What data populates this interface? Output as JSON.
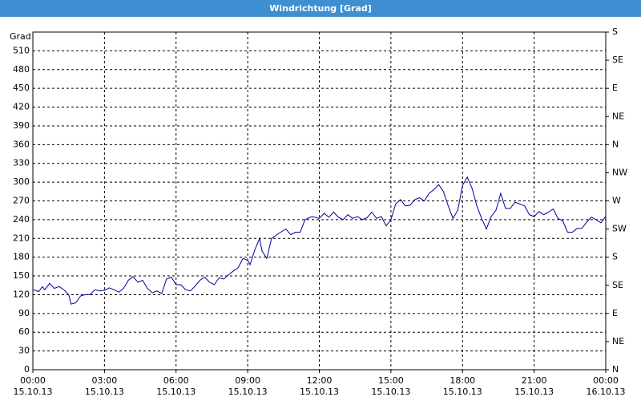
{
  "chart_data": {
    "type": "line",
    "title": "Windrichtung [Grad]",
    "y_label": "Grad",
    "xlim": [
      0,
      24
    ],
    "ylim": [
      0,
      540
    ],
    "y2lim": [
      0,
      540
    ],
    "grid": true,
    "xticks": [
      {
        "value": 0,
        "label": [
          "00:00",
          "15.10.13"
        ]
      },
      {
        "value": 3,
        "label": [
          "03:00",
          "15.10.13"
        ]
      },
      {
        "value": 6,
        "label": [
          "06:00",
          "15.10.13"
        ]
      },
      {
        "value": 9,
        "label": [
          "09:00",
          "15.10.13"
        ]
      },
      {
        "value": 12,
        "label": [
          "12:00",
          "15.10.13"
        ]
      },
      {
        "value": 15,
        "label": [
          "15:00",
          "15.10.13"
        ]
      },
      {
        "value": 18,
        "label": [
          "18:00",
          "15.10.13"
        ]
      },
      {
        "value": 21,
        "label": [
          "21:00",
          "15.10.13"
        ]
      },
      {
        "value": 24,
        "label": [
          "00:00",
          "16.10.13"
        ]
      }
    ],
    "yticks": [
      0,
      30,
      60,
      90,
      120,
      150,
      180,
      210,
      240,
      270,
      300,
      330,
      360,
      390,
      420,
      450,
      480,
      510
    ],
    "y2ticks": [
      {
        "value": 0,
        "label": "N"
      },
      {
        "value": 45,
        "label": "NE"
      },
      {
        "value": 90,
        "label": "E"
      },
      {
        "value": 135,
        "label": "SE"
      },
      {
        "value": 180,
        "label": "S"
      },
      {
        "value": 225,
        "label": "SW"
      },
      {
        "value": 270,
        "label": "W"
      },
      {
        "value": 315,
        "label": "NW"
      },
      {
        "value": 360,
        "label": "N"
      },
      {
        "value": 405,
        "label": "NE"
      },
      {
        "value": 450,
        "label": "E"
      },
      {
        "value": 495,
        "label": "SE"
      },
      {
        "value": 540,
        "label": "S"
      }
    ],
    "series": [
      {
        "color": "#000099",
        "x": [
          0,
          0.25,
          0.4,
          0.5,
          0.7,
          0.9,
          1.1,
          1.3,
          1.5,
          1.6,
          1.8,
          2.0,
          2.2,
          2.4,
          2.6,
          2.8,
          3.0,
          3.2,
          3.4,
          3.6,
          3.8,
          4.0,
          4.2,
          4.4,
          4.6,
          4.8,
          5.0,
          5.2,
          5.4,
          5.6,
          5.8,
          6.0,
          6.2,
          6.4,
          6.6,
          6.8,
          7.0,
          7.2,
          7.4,
          7.6,
          7.8,
          8.0,
          8.2,
          8.4,
          8.6,
          8.8,
          9.0,
          9.1,
          9.3,
          9.5,
          9.6,
          9.8,
          10.0,
          10.3,
          10.6,
          10.8,
          11.0,
          11.2,
          11.4,
          11.7,
          12.0,
          12.2,
          12.4,
          12.6,
          12.8,
          13.0,
          13.2,
          13.4,
          13.6,
          13.8,
          14.0,
          14.2,
          14.4,
          14.6,
          14.8,
          15.0,
          15.2,
          15.4,
          15.6,
          15.8,
          16.0,
          16.2,
          16.4,
          16.6,
          16.8,
          17.0,
          17.2,
          17.4,
          17.6,
          17.8,
          18.0,
          18.2,
          18.4,
          18.6,
          18.8,
          19.0,
          19.2,
          19.4,
          19.6,
          19.8,
          20.0,
          20.2,
          20.4,
          20.6,
          20.8,
          21.0,
          21.2,
          21.4,
          21.6,
          21.8,
          22.0,
          22.2,
          22.4,
          22.6,
          22.8,
          23.0,
          23.2,
          23.4,
          23.6,
          23.8,
          24.0
        ],
        "values": [
          128,
          125,
          133,
          128,
          138,
          130,
          133,
          128,
          120,
          105,
          107,
          118,
          120,
          120,
          128,
          126,
          127,
          131,
          128,
          124,
          130,
          143,
          149,
          140,
          143,
          130,
          123,
          126,
          122,
          145,
          148,
          136,
          136,
          128,
          126,
          134,
          143,
          148,
          140,
          136,
          147,
          145,
          152,
          158,
          163,
          178,
          175,
          168,
          192,
          210,
          190,
          178,
          210,
          218,
          225,
          216,
          220,
          220,
          240,
          245,
          242,
          250,
          244,
          252,
          244,
          240,
          248,
          242,
          245,
          240,
          243,
          252,
          242,
          245,
          230,
          240,
          265,
          272,
          262,
          263,
          272,
          275,
          270,
          282,
          288,
          296,
          285,
          262,
          242,
          255,
          295,
          308,
          290,
          262,
          242,
          225,
          245,
          255,
          282,
          258,
          258,
          268,
          265,
          262,
          248,
          245,
          253,
          248,
          252,
          257,
          242,
          238,
          220,
          220,
          226,
          226,
          236,
          244,
          240,
          235,
          245
        ]
      }
    ]
  }
}
